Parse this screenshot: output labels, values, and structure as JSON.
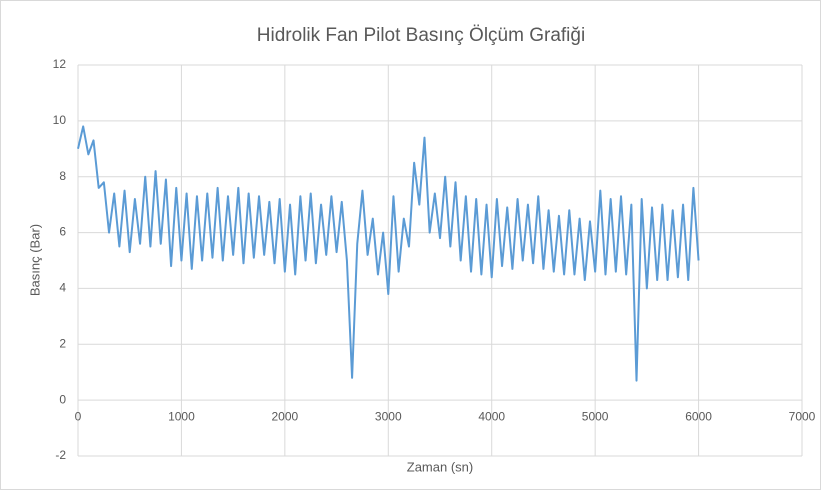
{
  "chart_data": {
    "type": "line",
    "title": "Hidrolik Fan Pilot Basınç Ölçüm Grafiği",
    "x_label": "Zaman (sn)",
    "y_label": "Basınç (Bar)",
    "xlim": [
      0,
      7000
    ],
    "xticks": [
      0,
      1000,
      2000,
      3000,
      4000,
      5000,
      6000,
      7000
    ],
    "ylim": [
      -2,
      12
    ],
    "yticks": [
      -2,
      0,
      2,
      4,
      6,
      8,
      10,
      12
    ],
    "grid": true,
    "x": [
      0,
      50,
      100,
      150,
      200,
      250,
      300,
      350,
      400,
      450,
      500,
      550,
      600,
      650,
      700,
      750,
      800,
      850,
      900,
      950,
      1000,
      1050,
      1100,
      1150,
      1200,
      1250,
      1300,
      1350,
      1400,
      1450,
      1500,
      1550,
      1600,
      1650,
      1700,
      1750,
      1800,
      1850,
      1900,
      1950,
      2000,
      2050,
      2100,
      2150,
      2200,
      2250,
      2300,
      2350,
      2400,
      2450,
      2500,
      2550,
      2600,
      2650,
      2700,
      2750,
      2800,
      2850,
      2900,
      2950,
      3000,
      3050,
      3100,
      3150,
      3200,
      3250,
      3300,
      3350,
      3400,
      3450,
      3500,
      3550,
      3600,
      3650,
      3700,
      3750,
      3800,
      3850,
      3900,
      3950,
      4000,
      4050,
      4100,
      4150,
      4200,
      4250,
      4300,
      4350,
      4400,
      4450,
      4500,
      4550,
      4600,
      4650,
      4700,
      4750,
      4800,
      4850,
      4900,
      4950,
      5000,
      5050,
      5100,
      5150,
      5200,
      5250,
      5300,
      5350,
      5400,
      5450,
      5500,
      5550,
      5600,
      5650,
      5700,
      5750,
      5800,
      5850,
      5900,
      5950,
      6000
    ],
    "series": [
      {
        "name": "Basınç",
        "color": "#5b9bd5",
        "values": [
          9.0,
          9.8,
          8.8,
          9.3,
          7.6,
          7.8,
          6.0,
          7.4,
          5.5,
          7.5,
          5.3,
          7.2,
          5.6,
          8.0,
          5.5,
          8.2,
          5.6,
          7.9,
          4.8,
          7.6,
          5.0,
          7.4,
          4.7,
          7.3,
          5.0,
          7.4,
          5.1,
          7.6,
          5.0,
          7.3,
          5.2,
          7.6,
          4.9,
          7.4,
          5.1,
          7.3,
          5.2,
          7.1,
          4.9,
          7.2,
          4.6,
          7.0,
          4.5,
          7.3,
          5.0,
          7.4,
          4.9,
          7.0,
          5.2,
          7.3,
          5.3,
          7.1,
          5.0,
          0.8,
          5.6,
          7.5,
          5.2,
          6.5,
          4.5,
          6.0,
          3.8,
          7.3,
          4.6,
          6.5,
          5.5,
          8.5,
          7.0,
          9.4,
          6.0,
          7.4,
          5.8,
          8.0,
          5.5,
          7.8,
          5.0,
          7.3,
          4.6,
          7.2,
          4.5,
          7.0,
          4.4,
          7.2,
          4.8,
          6.9,
          4.7,
          7.2,
          5.0,
          7.0,
          4.9,
          7.3,
          4.7,
          6.8,
          4.6,
          6.6,
          4.5,
          6.8,
          4.5,
          6.5,
          4.3,
          6.4,
          4.6,
          7.5,
          4.5,
          7.2,
          4.6,
          7.3,
          4.5,
          7.0,
          0.7,
          7.2,
          4.0,
          6.9,
          4.3,
          7.0,
          4.3,
          6.8,
          4.4,
          7.0,
          4.3,
          7.6,
          5.0
        ]
      }
    ]
  }
}
